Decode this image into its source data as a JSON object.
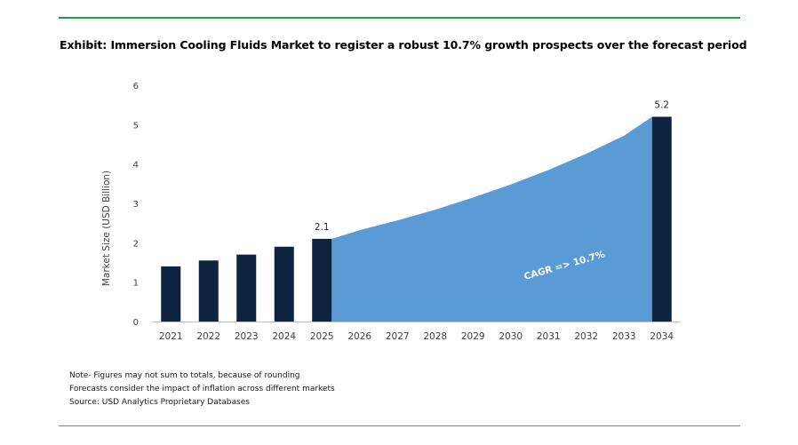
{
  "chart_data": {
    "type": "bar",
    "title": "Exhibit: Immersion Cooling Fluids Market to register a robust 10.7% growth prospects over the forecast period",
    "ylabel": "Market Size (USD Billion)",
    "xlabel": "",
    "ylim": [
      0,
      6
    ],
    "yticks": [
      "0",
      "1",
      "2",
      "3",
      "4",
      "5",
      "6"
    ],
    "categories": [
      "2021",
      "2022",
      "2023",
      "2024",
      "2025",
      "2026",
      "2027",
      "2028",
      "2029",
      "2030",
      "2031",
      "2032",
      "2033",
      "2034"
    ],
    "bars": [
      {
        "category": "2021",
        "value": 1.4
      },
      {
        "category": "2022",
        "value": 1.55
      },
      {
        "category": "2023",
        "value": 1.7
      },
      {
        "category": "2024",
        "value": 1.9
      },
      {
        "category": "2025",
        "value": 2.1,
        "label": "2.1"
      },
      {
        "category": "2034",
        "value": 5.2,
        "label": "5.2"
      }
    ],
    "area": {
      "categories": [
        "2025",
        "2026",
        "2027",
        "2028",
        "2029",
        "2030",
        "2031",
        "2032",
        "2033",
        "2034"
      ],
      "values": [
        2.1,
        2.32,
        2.57,
        2.84,
        3.15,
        3.48,
        3.85,
        4.26,
        4.72,
        5.2
      ]
    },
    "annotation": "CAGR => 10.7%",
    "grid": false,
    "colors": {
      "bar": "#0d2440",
      "area": "#5b9bd5",
      "annotation": "#ffffff",
      "axis_line": "#bfbfbf"
    }
  },
  "notes": [
    "Note- Figures may not sum to totals, because of rounding",
    "Forecasts consider the impact of inflation across different markets",
    "Source: USD Analytics Proprietary Databases"
  ],
  "colors": {
    "top_rule": "#1f9e4a",
    "bottom_rule": "#808080"
  }
}
